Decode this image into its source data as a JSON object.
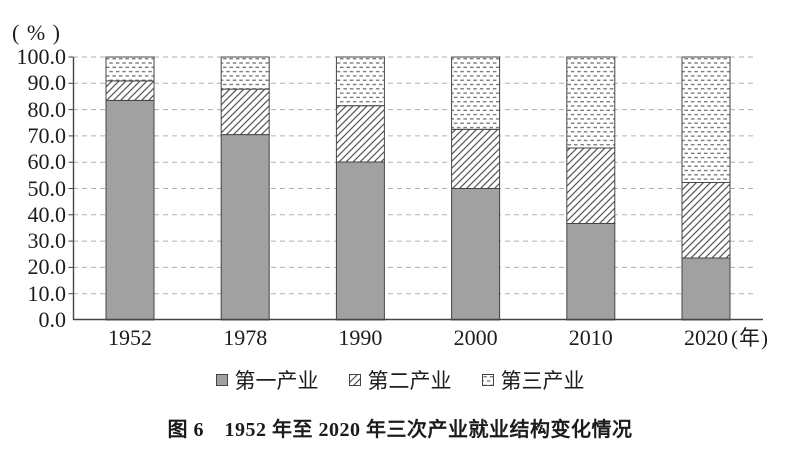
{
  "chart_data": {
    "type": "bar",
    "stacked": true,
    "categories": [
      "1952",
      "1978",
      "1990",
      "2000",
      "2010",
      "2020"
    ],
    "series": [
      {
        "name": "第一产业",
        "pattern": "solid-gray",
        "values": [
          83.5,
          70.5,
          60.1,
          50.0,
          36.7,
          23.6
        ]
      },
      {
        "name": "第二产业",
        "pattern": "diagonal-hatch",
        "values": [
          7.4,
          17.3,
          21.4,
          22.5,
          28.7,
          28.7
        ]
      },
      {
        "name": "第三产业",
        "pattern": "horizontal-dashes",
        "values": [
          9.1,
          12.2,
          18.5,
          27.5,
          34.6,
          47.7
        ]
      }
    ],
    "ylim": [
      0,
      100
    ],
    "ytick_step": 10,
    "ytick_labels": [
      "0.0",
      "10.0",
      "20.0",
      "30.0",
      "40.0",
      "50.0",
      "60.0",
      "70.0",
      "80.0",
      "90.0",
      "100.0"
    ],
    "y_unit_label": "( % )",
    "x_suffix": "(年)",
    "grid": "dashed-horizontal",
    "legend_position": "bottom"
  },
  "caption": "图 6　1952 年至 2020 年三次产业就业结构变化情况",
  "colors": {
    "bar_fill_gray": "#a1a1a1",
    "bar_stroke": "#454545",
    "hatch_line": "#565656",
    "dash_mark": "#6f6f6f",
    "gridline": "#b1b1b1",
    "axis": "#454545",
    "text": "#1c1c1c"
  }
}
